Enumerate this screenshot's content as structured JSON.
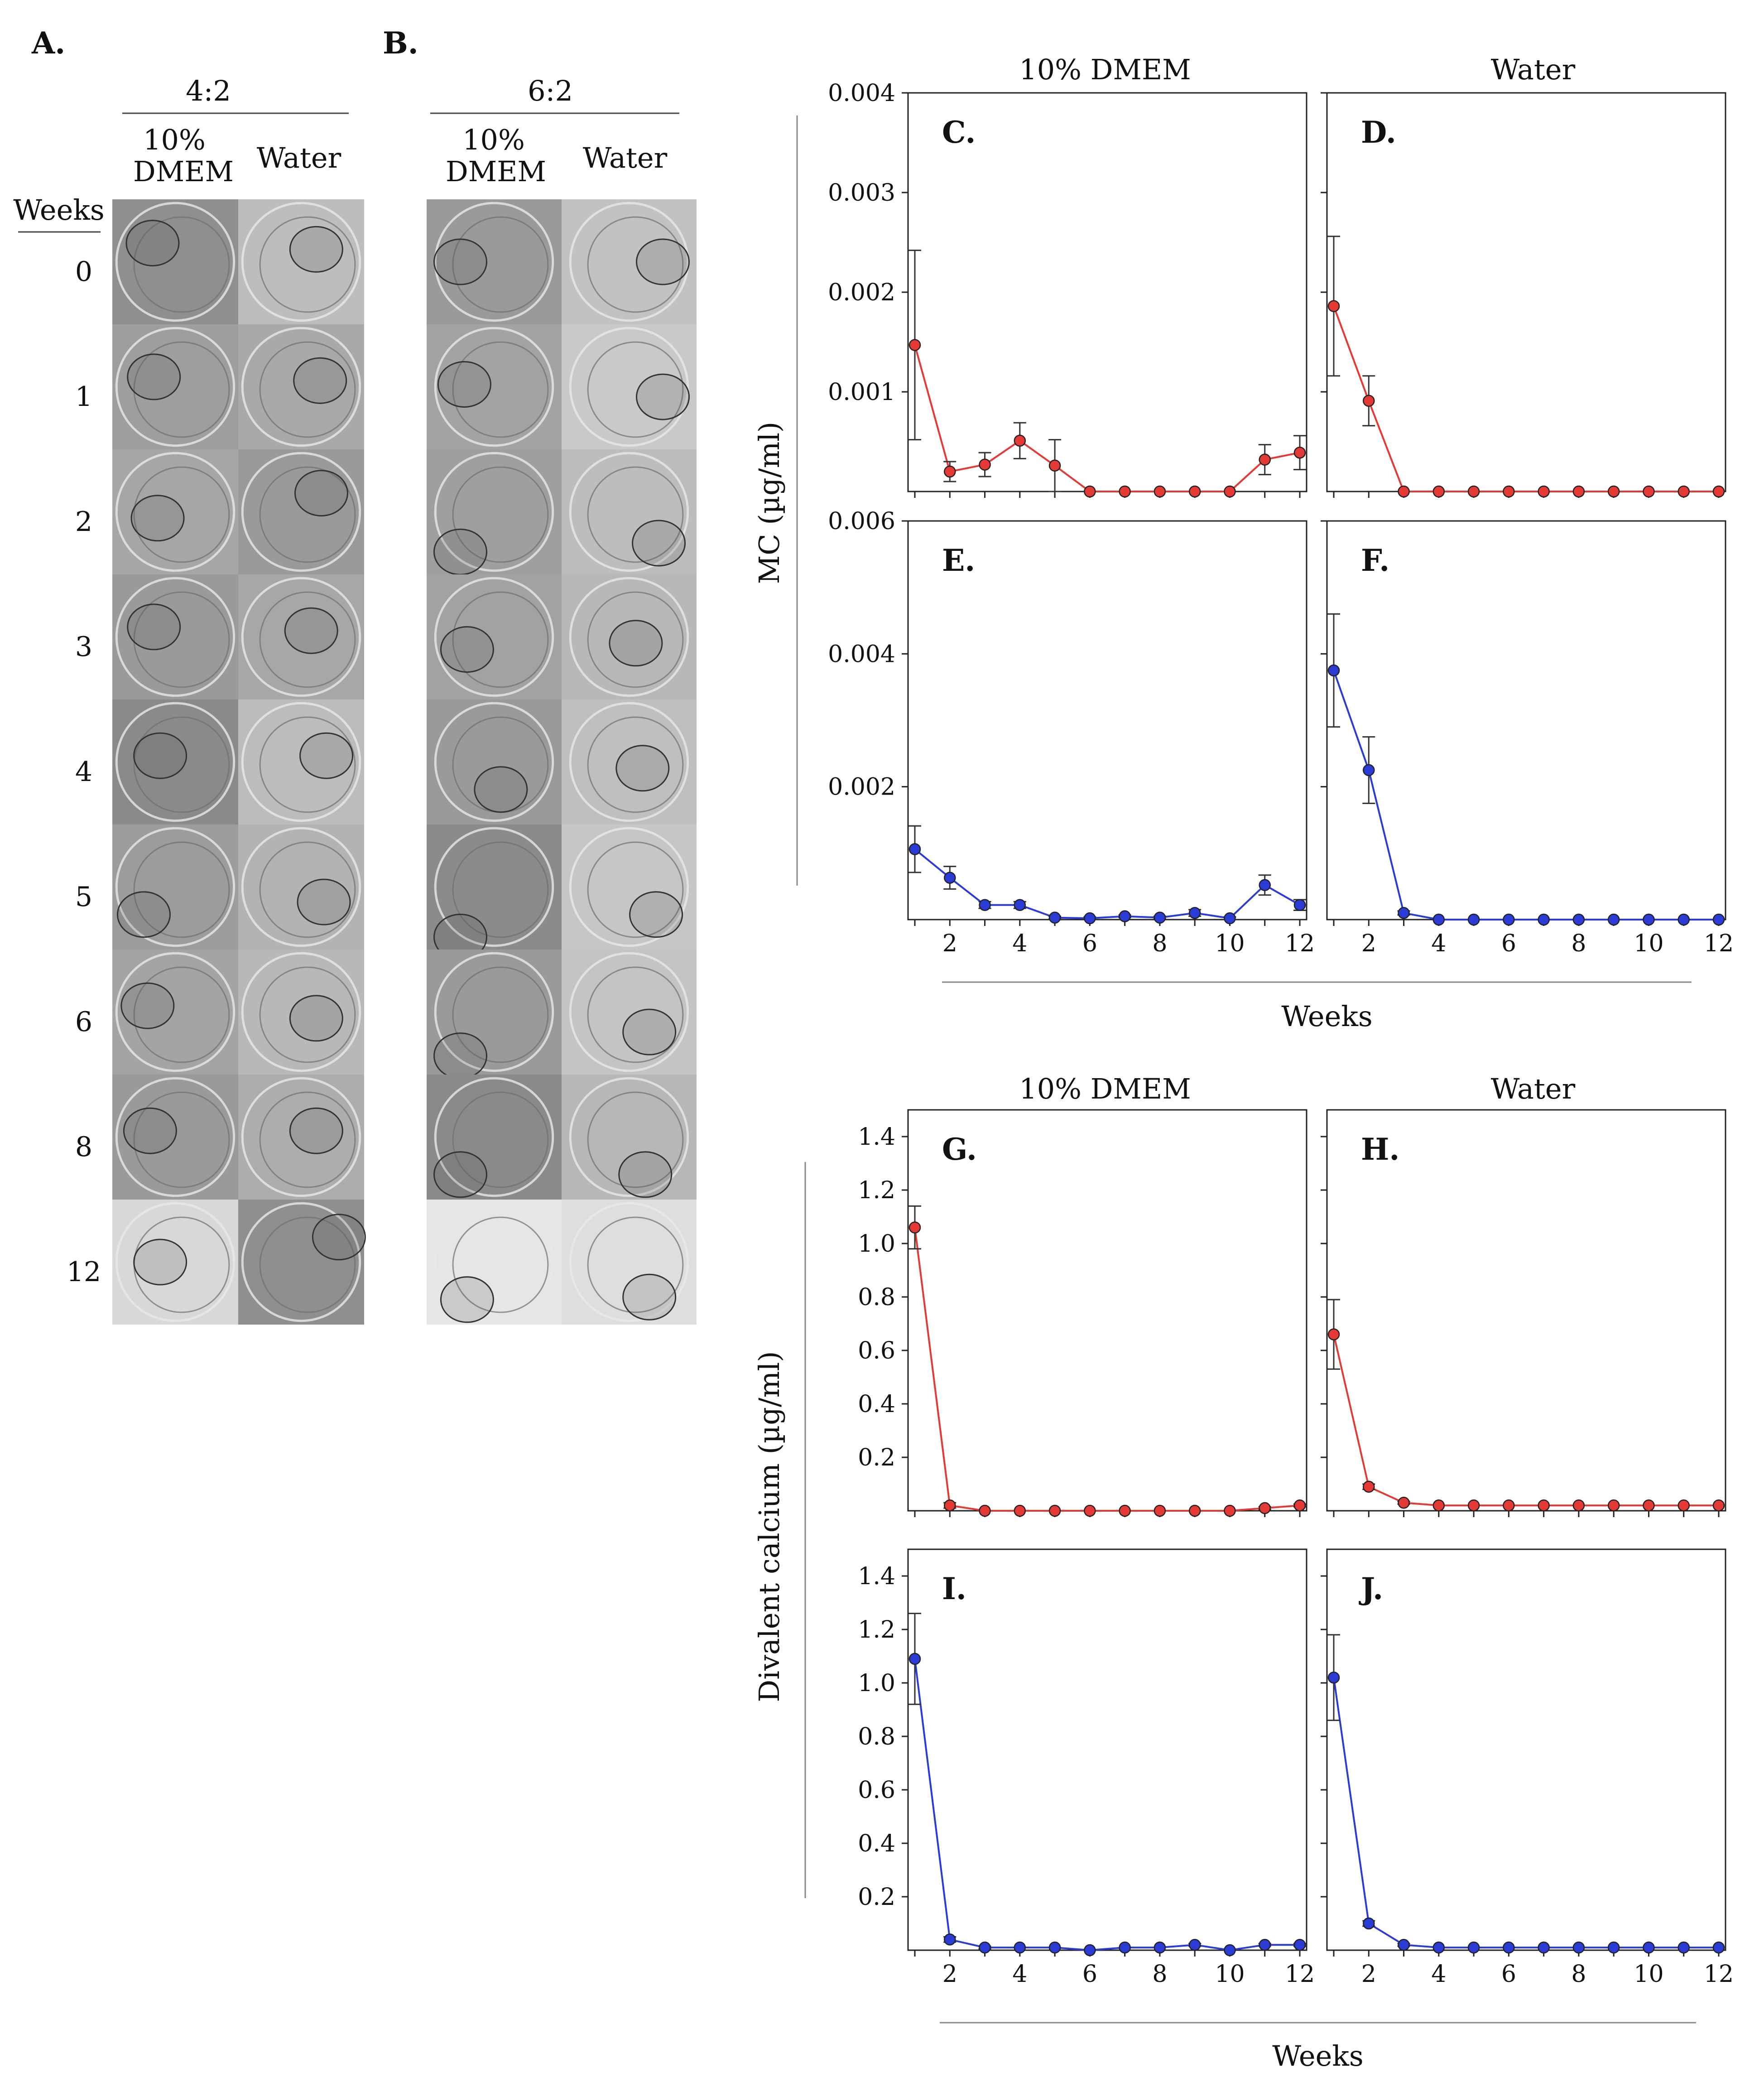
{
  "figure": {
    "panel_A_label": "A.",
    "panel_B_label": "B.",
    "photo_A": {
      "ratio": "4:2",
      "columns": [
        "10%\nDMEM",
        "Water"
      ],
      "col1_line1": "10%",
      "col1_line2": "DMEM",
      "col2": "Water"
    },
    "photo_B": {
      "ratio": "6:2",
      "col1_line1": "10%",
      "col1_line2": "DMEM",
      "col2": "Water"
    },
    "weeks_header": "Weeks",
    "weeks_rows": [
      "0",
      "1",
      "2",
      "3",
      "4",
      "5",
      "6",
      "8",
      "12"
    ],
    "mc_axis_label": "MC (µg/ml)",
    "ca_axis_label": "Divalent calcium (µg/ml)",
    "x_axis_label_top": "Weeks",
    "x_axis_label_bottom": "Weeks",
    "col_title_dmem_top": "10% DMEM",
    "col_title_water_top": "Water",
    "col_title_dmem_bottom": "10% DMEM",
    "col_title_water_bottom": "Water"
  },
  "colors": {
    "red_series": "#e53935",
    "blue_series": "#2b3bd6",
    "axis": "#222222",
    "photo_gray": "#9a9a9a"
  },
  "chart_data": [
    {
      "panel": "C.",
      "type": "line",
      "column": "10% DMEM",
      "ylabel": "MC (µg/ml)",
      "x": [
        1,
        2,
        3,
        4,
        5,
        6,
        7,
        8,
        9,
        10,
        11,
        12
      ],
      "values": [
        0.00147,
        0.0002,
        0.00027,
        0.00051,
        0.00026,
        0,
        0,
        0,
        0,
        0,
        0.00032,
        0.00039
      ],
      "errors": [
        0.00095,
        0.0001,
        0.00012,
        0.00018,
        0.00026,
        0,
        0,
        0,
        0,
        0,
        0.00015,
        0.00017
      ],
      "ylim": [
        0,
        0.004
      ],
      "yticks": [
        0.001,
        0.002,
        0.003,
        0.004
      ],
      "ytick_labels": [
        "0.001",
        "0.002",
        "0.003",
        "0.004"
      ],
      "xticks": [],
      "xtick_labels": [],
      "color": "red"
    },
    {
      "panel": "D.",
      "type": "line",
      "column": "Water",
      "ylabel": "MC (µg/ml)",
      "x": [
        1,
        2,
        3,
        4,
        5,
        6,
        7,
        8,
        9,
        10,
        11,
        12
      ],
      "values": [
        0.00186,
        0.00091,
        0,
        0,
        0,
        0,
        0,
        0,
        0,
        0,
        0,
        0
      ],
      "errors": [
        0.0007,
        0.00025,
        0,
        0,
        0,
        0,
        0,
        0,
        0,
        0,
        0,
        0
      ],
      "ylim": [
        0,
        0.004
      ],
      "yticks": [],
      "ytick_labels": [],
      "xticks": [],
      "xtick_labels": [],
      "color": "red"
    },
    {
      "panel": "E.",
      "type": "line",
      "column": "10% DMEM",
      "ylabel": "MC (µg/ml)",
      "x": [
        1,
        2,
        3,
        4,
        5,
        6,
        7,
        8,
        9,
        10,
        11,
        12
      ],
      "values": [
        0.00106,
        0.00063,
        0.00022,
        0.00022,
        3e-05,
        2e-05,
        5e-05,
        3e-05,
        0.0001,
        2e-05,
        0.00052,
        0.00022
      ],
      "errors": [
        0.00035,
        0.00017,
        5e-05,
        5e-05,
        2e-05,
        2e-05,
        2e-05,
        2e-05,
        5e-05,
        2e-05,
        0.00015,
        8e-05
      ],
      "ylim": [
        0,
        0.006
      ],
      "yticks": [
        0.002,
        0.004,
        0.006
      ],
      "ytick_labels": [
        "0.002",
        "0.004",
        "0.006"
      ],
      "xticks": [
        2,
        4,
        6,
        8,
        10,
        12
      ],
      "xtick_labels": [
        "2",
        "4",
        "6",
        "8",
        "10",
        "12"
      ],
      "color": "blue"
    },
    {
      "panel": "F.",
      "type": "line",
      "column": "Water",
      "ylabel": "MC (µg/ml)",
      "x": [
        1,
        2,
        3,
        4,
        5,
        6,
        7,
        8,
        9,
        10,
        11,
        12
      ],
      "values": [
        0.00375,
        0.00225,
        0.0001,
        0,
        0,
        0,
        0,
        0,
        0,
        0,
        0,
        0
      ],
      "errors": [
        0.00085,
        0.0005,
        3e-05,
        0,
        0,
        0,
        0,
        0,
        0,
        0,
        0,
        0
      ],
      "ylim": [
        0,
        0.006
      ],
      "yticks": [],
      "ytick_labels": [],
      "xticks": [
        2,
        4,
        6,
        8,
        10,
        12
      ],
      "xtick_labels": [
        "2",
        "4",
        "6",
        "8",
        "10",
        "12"
      ],
      "color": "blue"
    },
    {
      "panel": "G.",
      "type": "line",
      "column": "10% DMEM",
      "ylabel": "Divalent calcium (µg/ml)",
      "x": [
        1,
        2,
        3,
        4,
        5,
        6,
        7,
        8,
        9,
        10,
        11,
        12
      ],
      "values": [
        1.06,
        0.02,
        0.0,
        0.0,
        0.0,
        0.0,
        0.0,
        0.0,
        0.0,
        0.0,
        0.01,
        0.02
      ],
      "errors": [
        0.08,
        0.01,
        0,
        0,
        0,
        0,
        0,
        0,
        0,
        0,
        0.005,
        0.005
      ],
      "ylim": [
        0,
        1.5
      ],
      "yticks": [
        0.2,
        0.4,
        0.6,
        0.8,
        1.0,
        1.2,
        1.4
      ],
      "ytick_labels": [
        "0.2",
        "0.4",
        "0.6",
        "0.8",
        "1.0",
        "1.2",
        "1.4"
      ],
      "xticks": [],
      "xtick_labels": [],
      "color": "red"
    },
    {
      "panel": "H.",
      "type": "line",
      "column": "Water",
      "ylabel": "Divalent calcium (µg/ml)",
      "x": [
        1,
        2,
        3,
        4,
        5,
        6,
        7,
        8,
        9,
        10,
        11,
        12
      ],
      "values": [
        0.66,
        0.09,
        0.03,
        0.02,
        0.02,
        0.02,
        0.02,
        0.02,
        0.02,
        0.02,
        0.02,
        0.02
      ],
      "errors": [
        0.13,
        0.01,
        0.005,
        0,
        0,
        0,
        0,
        0,
        0,
        0,
        0,
        0
      ],
      "ylim": [
        0,
        1.5
      ],
      "yticks": [],
      "ytick_labels": [],
      "xticks": [],
      "xtick_labels": [],
      "color": "red"
    },
    {
      "panel": "I.",
      "type": "line",
      "column": "10% DMEM",
      "ylabel": "Divalent calcium (µg/ml)",
      "x": [
        1,
        2,
        3,
        4,
        5,
        6,
        7,
        8,
        9,
        10,
        11,
        12
      ],
      "values": [
        1.09,
        0.04,
        0.01,
        0.01,
        0.01,
        0.0,
        0.01,
        0.01,
        0.02,
        0.0,
        0.02,
        0.02
      ],
      "errors": [
        0.17,
        0.01,
        0.005,
        0,
        0,
        0,
        0,
        0,
        0.005,
        0,
        0.005,
        0.005
      ],
      "ylim": [
        0,
        1.5
      ],
      "yticks": [
        0.2,
        0.4,
        0.6,
        0.8,
        1.0,
        1.2,
        1.4
      ],
      "ytick_labels": [
        "0.2",
        "0.4",
        "0.6",
        "0.8",
        "1.0",
        "1.2",
        "1.4"
      ],
      "xticks": [
        2,
        4,
        6,
        8,
        10,
        12
      ],
      "xtick_labels": [
        "2",
        "4",
        "6",
        "8",
        "10",
        "12"
      ],
      "color": "blue"
    },
    {
      "panel": "J.",
      "type": "line",
      "column": "Water",
      "ylabel": "Divalent calcium (µg/ml)",
      "x": [
        1,
        2,
        3,
        4,
        5,
        6,
        7,
        8,
        9,
        10,
        11,
        12
      ],
      "values": [
        1.02,
        0.1,
        0.02,
        0.01,
        0.01,
        0.01,
        0.01,
        0.01,
        0.01,
        0.01,
        0.01,
        0.01
      ],
      "errors": [
        0.16,
        0.01,
        0.005,
        0,
        0,
        0,
        0,
        0,
        0,
        0,
        0,
        0
      ],
      "ylim": [
        0,
        1.5
      ],
      "yticks": [],
      "ytick_labels": [],
      "xticks": [
        2,
        4,
        6,
        8,
        10,
        12
      ],
      "xtick_labels": [
        "2",
        "4",
        "6",
        "8",
        "10",
        "12"
      ],
      "color": "blue"
    }
  ]
}
